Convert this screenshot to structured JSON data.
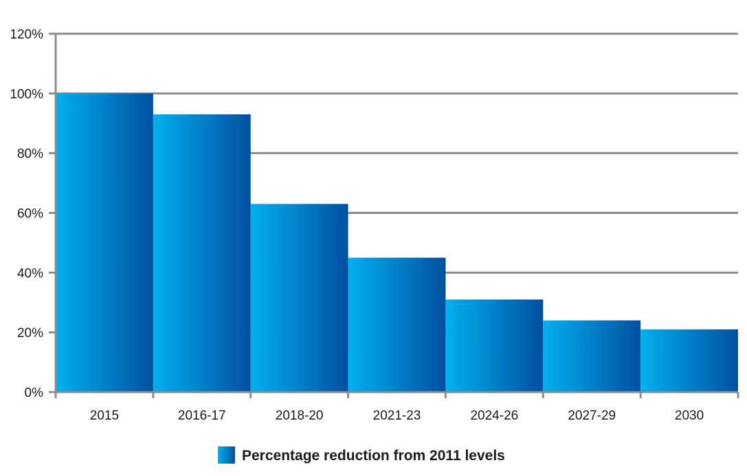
{
  "chart_data": {
    "type": "bar",
    "title": "",
    "xlabel": "",
    "ylabel": "",
    "categories": [
      "2015",
      "2016-17",
      "2018-20",
      "2021-23",
      "2024-26",
      "2027-29",
      "2030"
    ],
    "series": [
      {
        "name": "Percentage reduction from 2011 levels",
        "values": [
          100,
          93,
          63,
          45,
          31,
          24,
          21
        ]
      }
    ],
    "ylim": [
      0,
      120
    ],
    "yticks": [
      0,
      20,
      40,
      60,
      80,
      100,
      120
    ],
    "ytick_format": "{v}%",
    "grid": true,
    "legend_position": "bottom-center",
    "colors": {
      "bar_light": "#00b0f0",
      "bar_dark": "#0050a0",
      "grid": "#8c8c8c",
      "axis": "#8c8c8c"
    }
  }
}
